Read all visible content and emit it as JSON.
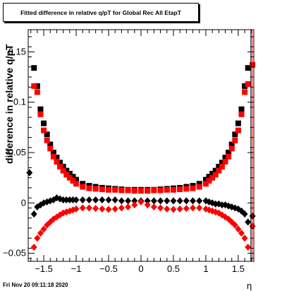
{
  "title": "Fitted difference in relative q/pT for Global Rec All EtapT",
  "footer": "Fri Nov 20 09:11:18 2020",
  "chart_data": {
    "type": "scatter",
    "title": "Fitted difference in relative q/pT for Global Rec All EtapT",
    "xlabel": "η",
    "ylabel": "difference in relative q/pT",
    "xlim": [
      -1.74,
      1.74
    ],
    "ylim": [
      -0.058,
      0.172
    ],
    "xticks": [
      -1.5,
      -1,
      -0.5,
      0,
      0.5,
      1,
      1.5
    ],
    "xtick_labels": [
      "−1.5",
      "−1",
      "−0.5",
      "0",
      "0.5",
      "1",
      "1.5"
    ],
    "yticks": [
      -0.05,
      0,
      0.05,
      0.1,
      0.15
    ],
    "ytick_labels": [
      "−0.05",
      "0",
      "0.05",
      "0.1",
      "0.15"
    ],
    "grid": false,
    "series": [
      {
        "color": "#000000",
        "marker": "square",
        "x": [
          -1.65,
          -1.6,
          -1.55,
          -1.5,
          -1.45,
          -1.4,
          -1.35,
          -1.3,
          -1.25,
          -1.2,
          -1.15,
          -1.1,
          -1.05,
          -1.0,
          -0.9,
          -0.8,
          -0.7,
          -0.6,
          -0.5,
          -0.4,
          -0.3,
          -0.2,
          -0.1,
          0.0,
          0.1,
          0.2,
          0.3,
          0.4,
          0.5,
          0.6,
          0.7,
          0.8,
          0.9,
          1.0,
          1.05,
          1.1,
          1.15,
          1.2,
          1.25,
          1.3,
          1.35,
          1.4,
          1.45,
          1.5,
          1.55,
          1.6,
          1.65
        ],
        "y": [
          0.134,
          0.116,
          0.093,
          0.079,
          0.068,
          0.058,
          0.05,
          0.045,
          0.04,
          0.036,
          0.032,
          0.029,
          0.026,
          0.023,
          0.019,
          0.017,
          0.016,
          0.015,
          0.0145,
          0.014,
          0.0135,
          0.013,
          0.013,
          0.013,
          0.013,
          0.013,
          0.0135,
          0.014,
          0.0145,
          0.015,
          0.016,
          0.017,
          0.019,
          0.023,
          0.026,
          0.029,
          0.032,
          0.036,
          0.04,
          0.045,
          0.05,
          0.058,
          0.068,
          0.079,
          0.093,
          0.116,
          0.134
        ]
      },
      {
        "color": "#ff0000",
        "marker": "square",
        "x": [
          -1.65,
          -1.6,
          -1.55,
          -1.5,
          -1.45,
          -1.4,
          -1.35,
          -1.3,
          -1.25,
          -1.2,
          -1.15,
          -1.1,
          -1.05,
          -1.0,
          -0.9,
          -0.8,
          -0.7,
          -0.6,
          -0.5,
          -0.4,
          -0.3,
          -0.2,
          -0.1,
          0.0,
          0.1,
          0.2,
          0.3,
          0.4,
          0.5,
          0.6,
          0.7,
          0.8,
          0.9,
          1.0,
          1.05,
          1.1,
          1.15,
          1.2,
          1.25,
          1.3,
          1.35,
          1.4,
          1.45,
          1.5,
          1.55,
          1.6,
          1.65,
          1.72
        ],
        "y": [
          0.116,
          0.11,
          0.088,
          0.072,
          0.062,
          0.054,
          0.046,
          0.041,
          0.036,
          0.032,
          0.028,
          0.025,
          0.022,
          0.019,
          0.016,
          0.0145,
          0.014,
          0.0135,
          0.013,
          0.013,
          0.0125,
          0.0125,
          0.012,
          0.012,
          0.012,
          0.0125,
          0.0125,
          0.013,
          0.013,
          0.0135,
          0.014,
          0.0145,
          0.016,
          0.019,
          0.022,
          0.025,
          0.028,
          0.032,
          0.036,
          0.041,
          0.046,
          0.054,
          0.062,
          0.072,
          0.088,
          0.11,
          0.118,
          0.137
        ]
      },
      {
        "color": "#000000",
        "marker": "diamond",
        "x": [
          -1.72,
          -1.65,
          -1.6,
          -1.55,
          -1.5,
          -1.45,
          -1.4,
          -1.35,
          -1.3,
          -1.25,
          -1.2,
          -1.15,
          -1.1,
          -1.05,
          -1.0,
          -0.9,
          -0.8,
          -0.7,
          -0.6,
          -0.5,
          -0.4,
          -0.3,
          -0.2,
          -0.1,
          0.0,
          0.1,
          0.2,
          0.3,
          0.4,
          0.5,
          0.6,
          0.7,
          0.8,
          0.9,
          1.0,
          1.05,
          1.1,
          1.15,
          1.2,
          1.25,
          1.3,
          1.35,
          1.4,
          1.45,
          1.5,
          1.55,
          1.6,
          1.65,
          1.72
        ],
        "y": [
          0.03,
          -0.011,
          -0.004,
          -0.002,
          0.0,
          0.001,
          0.002,
          0.003,
          0.005,
          0.004,
          0.003,
          0.003,
          0.003,
          0.003,
          0.003,
          0.003,
          0.003,
          0.003,
          0.003,
          0.003,
          0.003,
          0.002,
          0.002,
          0.002,
          0.002,
          0.002,
          0.002,
          0.002,
          0.002,
          0.002,
          0.002,
          0.002,
          0.002,
          0.002,
          0.002,
          0.001,
          0.0,
          -0.001,
          -0.001,
          -0.002,
          -0.002,
          -0.003,
          -0.004,
          -0.005,
          -0.006,
          -0.008,
          -0.011,
          -0.019,
          -0.013
        ]
      },
      {
        "color": "#ff0000",
        "marker": "diamond",
        "x": [
          -1.65,
          -1.6,
          -1.55,
          -1.5,
          -1.45,
          -1.4,
          -1.35,
          -1.3,
          -1.25,
          -1.2,
          -1.15,
          -1.1,
          -1.05,
          -1.0,
          -0.9,
          -0.8,
          -0.7,
          -0.6,
          -0.5,
          -0.4,
          -0.3,
          -0.2,
          -0.1,
          0.0,
          0.1,
          0.2,
          0.3,
          0.4,
          0.5,
          0.6,
          0.7,
          0.8,
          0.9,
          1.0,
          1.05,
          1.1,
          1.15,
          1.2,
          1.25,
          1.3,
          1.35,
          1.4,
          1.45,
          1.5,
          1.55,
          1.6,
          1.65,
          1.72
        ],
        "y": [
          -0.044,
          -0.035,
          -0.03,
          -0.026,
          -0.022,
          -0.019,
          -0.016,
          -0.014,
          -0.012,
          -0.01,
          -0.009,
          -0.008,
          -0.007,
          -0.006,
          -0.005,
          -0.005,
          -0.0055,
          -0.006,
          -0.0065,
          -0.006,
          -0.005,
          -0.004,
          -0.002,
          0.001,
          -0.002,
          -0.004,
          -0.005,
          -0.006,
          -0.0065,
          -0.006,
          -0.0055,
          -0.005,
          -0.005,
          -0.006,
          -0.007,
          -0.008,
          -0.009,
          -0.01,
          -0.012,
          -0.014,
          -0.016,
          -0.019,
          -0.022,
          -0.026,
          -0.03,
          -0.035,
          -0.044,
          -0.023
        ]
      }
    ]
  }
}
